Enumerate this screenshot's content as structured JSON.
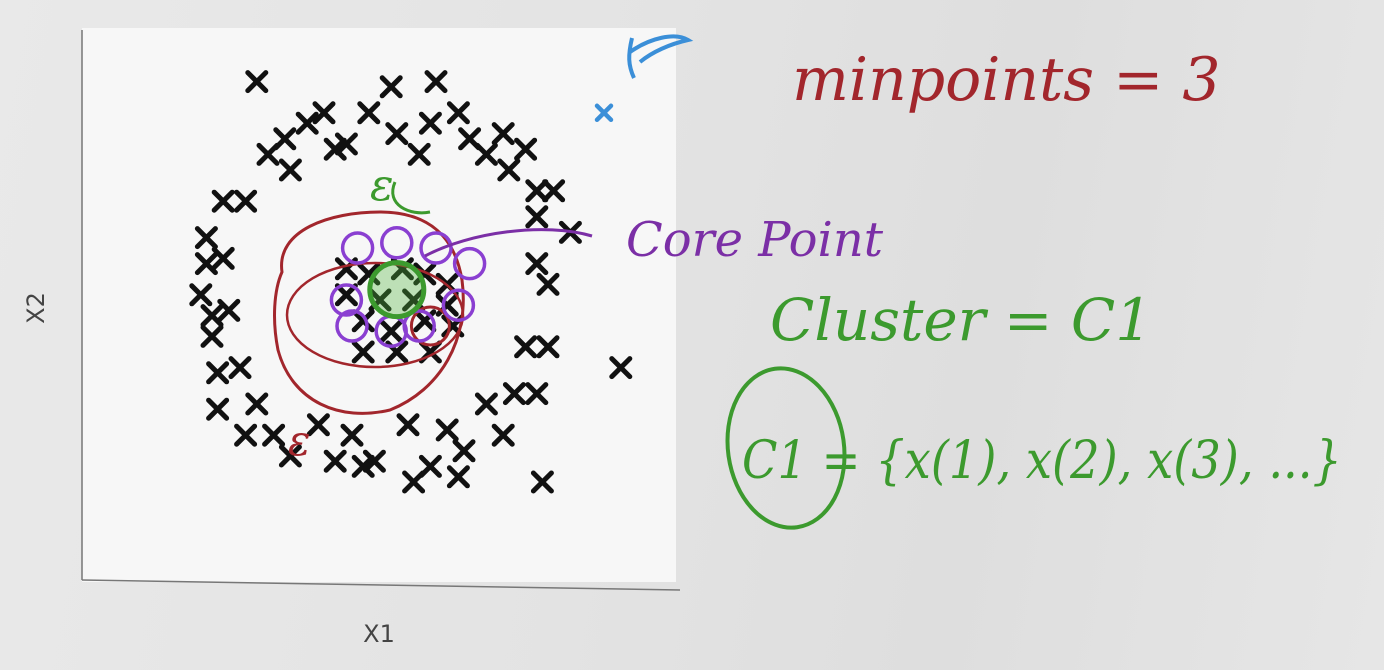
{
  "chart_data": {
    "type": "scatter",
    "title": "",
    "xlabel": "X1",
    "ylabel": "X2",
    "grid": false,
    "series": [
      {
        "marker": "x",
        "color": "#111111",
        "points": [
          [
            0.28,
            0.92
          ],
          [
            0.52,
            0.91
          ],
          [
            0.6,
            0.92
          ],
          [
            0.4,
            0.86
          ],
          [
            0.48,
            0.86
          ],
          [
            0.59,
            0.84
          ],
          [
            0.64,
            0.86
          ],
          [
            0.33,
            0.81
          ],
          [
            0.37,
            0.84
          ],
          [
            0.44,
            0.8
          ],
          [
            0.53,
            0.82
          ],
          [
            0.66,
            0.81
          ],
          [
            0.72,
            0.82
          ],
          [
            0.3,
            0.78
          ],
          [
            0.42,
            0.79
          ],
          [
            0.57,
            0.78
          ],
          [
            0.69,
            0.78
          ],
          [
            0.76,
            0.79
          ],
          [
            0.34,
            0.75
          ],
          [
            0.73,
            0.75
          ],
          [
            0.22,
            0.69
          ],
          [
            0.26,
            0.69
          ],
          [
            0.78,
            0.71
          ],
          [
            0.81,
            0.71
          ],
          [
            0.78,
            0.66
          ],
          [
            0.84,
            0.63
          ],
          [
            0.19,
            0.62
          ],
          [
            0.19,
            0.57
          ],
          [
            0.22,
            0.58
          ],
          [
            0.78,
            0.57
          ],
          [
            0.8,
            0.53
          ],
          [
            0.18,
            0.51
          ],
          [
            0.2,
            0.47
          ],
          [
            0.23,
            0.48
          ],
          [
            0.2,
            0.43
          ],
          [
            0.76,
            0.41
          ],
          [
            0.8,
            0.41
          ],
          [
            0.21,
            0.36
          ],
          [
            0.25,
            0.37
          ],
          [
            0.74,
            0.32
          ],
          [
            0.78,
            0.32
          ],
          [
            0.21,
            0.29
          ],
          [
            0.28,
            0.3
          ],
          [
            0.69,
            0.3
          ],
          [
            0.26,
            0.24
          ],
          [
            0.31,
            0.24
          ],
          [
            0.39,
            0.26
          ],
          [
            0.45,
            0.24
          ],
          [
            0.55,
            0.26
          ],
          [
            0.62,
            0.25
          ],
          [
            0.72,
            0.24
          ],
          [
            0.34,
            0.2
          ],
          [
            0.42,
            0.19
          ],
          [
            0.49,
            0.19
          ],
          [
            0.59,
            0.18
          ],
          [
            0.65,
            0.21
          ],
          [
            0.79,
            0.15
          ],
          [
            0.93,
            0.37
          ],
          [
            0.47,
            0.18
          ],
          [
            0.56,
            0.15
          ],
          [
            0.64,
            0.16
          ],
          [
            0.44,
            0.56
          ],
          [
            0.48,
            0.55
          ],
          [
            0.54,
            0.56
          ],
          [
            0.58,
            0.55
          ],
          [
            0.62,
            0.53
          ],
          [
            0.44,
            0.51
          ],
          [
            0.5,
            0.5
          ],
          [
            0.56,
            0.5
          ],
          [
            0.62,
            0.49
          ],
          [
            0.47,
            0.46
          ],
          [
            0.52,
            0.44
          ],
          [
            0.58,
            0.46
          ],
          [
            0.63,
            0.45
          ],
          [
            0.47,
            0.4
          ],
          [
            0.53,
            0.4
          ],
          [
            0.59,
            0.4
          ]
        ]
      },
      {
        "marker": "x",
        "color": "#3b8fd8",
        "points": [
          [
            0.9,
            0.86
          ]
        ]
      }
    ],
    "annotations": [
      {
        "text": "minpoints = 3",
        "color": "#a2262c"
      },
      {
        "text": "Core Point",
        "color": "#7b2fa6"
      },
      {
        "text": "Cluster = C1",
        "color": "#3c9a2e"
      },
      {
        "text": "C1 = {x(1), x(2), x(3), ...}",
        "color": "#3c9a2e"
      },
      {
        "text": "ε",
        "color": "#3c9a2e"
      },
      {
        "text": "ε",
        "color": "#a2262c"
      }
    ]
  },
  "core_point": [
    0.53,
    0.52
  ],
  "neighbor_circles": [
    [
      0.46,
      0.6
    ],
    [
      0.53,
      0.61
    ],
    [
      0.6,
      0.6
    ],
    [
      0.66,
      0.57
    ],
    [
      0.44,
      0.5
    ],
    [
      0.64,
      0.49
    ],
    [
      0.45,
      0.45
    ],
    [
      0.52,
      0.44
    ],
    [
      0.57,
      0.45
    ]
  ],
  "border_point": [
    0.59,
    0.45
  ],
  "noise_point": [
    0.9,
    0.86
  ]
}
